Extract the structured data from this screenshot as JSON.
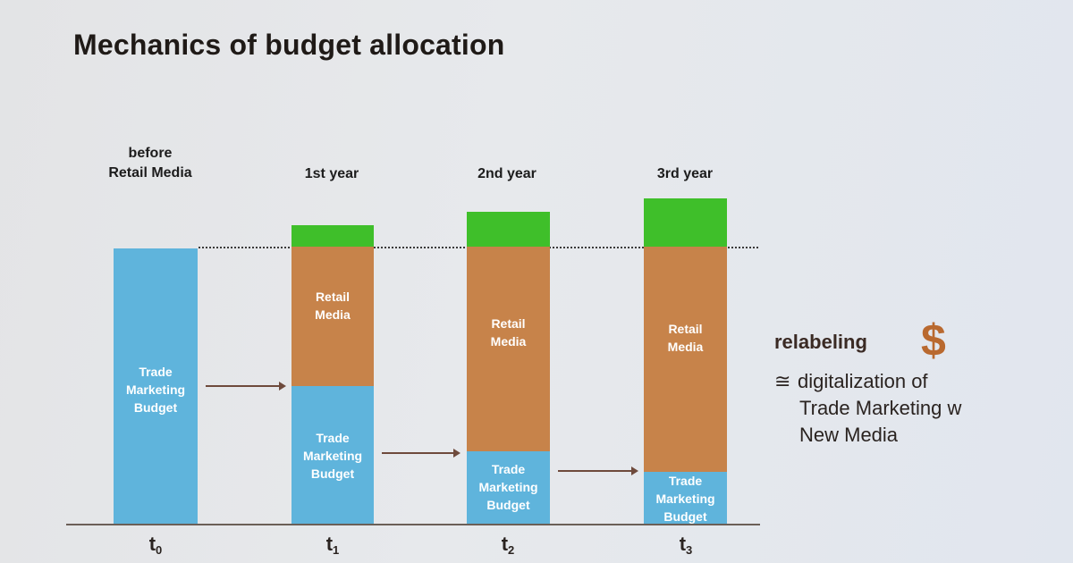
{
  "title": "Mechanics of budget allocation",
  "periods": [
    {
      "label": "before\nRetail Media",
      "tick": "t",
      "sub": "0"
    },
    {
      "label": "1st year",
      "tick": "t",
      "sub": "1"
    },
    {
      "label": "2nd year",
      "tick": "t",
      "sub": "2"
    },
    {
      "label": "3rd year",
      "tick": "t",
      "sub": "3"
    }
  ],
  "segments": {
    "trade": "Trade\nMarketing\nBudget",
    "retail": "Retail\nMedia"
  },
  "colors": {
    "trade": "#5fb4dc",
    "retail": "#c7834a",
    "new": "#3fbf2a",
    "dollar": "#b9692f"
  },
  "side": {
    "heading": "relabeling",
    "symbol": "$",
    "equiv": "≅",
    "line1": "digitalization of",
    "line2": "Trade Marketing w",
    "line3": "New Media"
  }
}
